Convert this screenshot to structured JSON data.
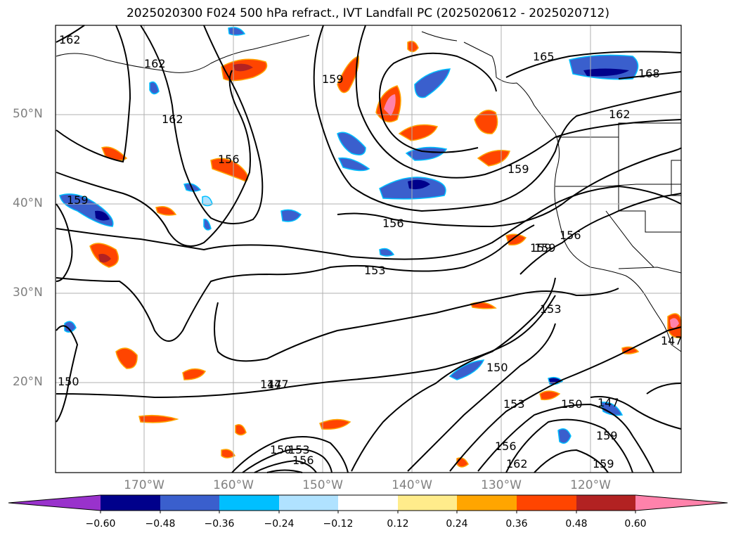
{
  "title": "2025020300 F024 500 hPa refract., IVT Landfall PC (2025020612 - 2025020712)",
  "latitude_labels": [
    "50°N",
    "40°N",
    "30°N",
    "20°N"
  ],
  "longitude_labels": [
    "170°W",
    "160°W",
    "150°W",
    "140°W",
    "130°W",
    "120°W"
  ],
  "contour_labels": [
    "162",
    "162",
    "162",
    "165",
    "168",
    "162",
    "159",
    "159",
    "156",
    "159",
    "156",
    "153",
    "159",
    "159",
    "156",
    "153",
    "153",
    "150",
    "150",
    "150",
    "147",
    "147",
    "147",
    "150",
    "153",
    "156",
    "162",
    "159",
    "156",
    "147",
    "159"
  ],
  "colorbar": {
    "ticks": [
      "−0.60",
      "−0.48",
      "−0.36",
      "−0.24",
      "−0.12",
      "0.12",
      "0.24",
      "0.36",
      "0.48",
      "0.60"
    ],
    "colors": [
      "#9932cc",
      "#00008b",
      "#3a5fcd",
      "#00bfff",
      "#b0e2ff",
      "#ffffff",
      "#ffec8b",
      "#ffa500",
      "#ff4500",
      "#b22222",
      "#ff82ab"
    ]
  }
}
